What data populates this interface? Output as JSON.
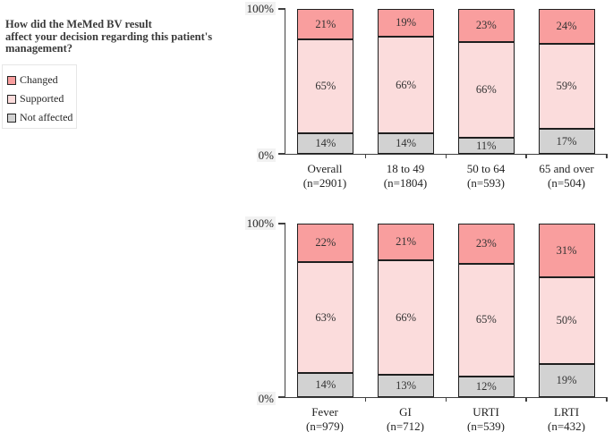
{
  "question": {
    "lines": [
      "How did the MeMed BV result",
      "affect your decision regarding this patient's",
      "management?"
    ]
  },
  "legend": {
    "items": [
      {
        "label": "Changed",
        "color": "#F99E9E"
      },
      {
        "label": "Supported",
        "color": "#FBDCDC"
      },
      {
        "label": "Not affected",
        "color": "#D2D2D2"
      }
    ]
  },
  "colors": {
    "segment_border": "#1f1f1f",
    "axis": "#404040",
    "label_text": "#333333"
  },
  "chart_data": [
    {
      "type": "bar",
      "stacked": true,
      "percent": true,
      "unit": "%",
      "title": "",
      "xlabel": "",
      "ylabel": "",
      "ylim": [
        0,
        100
      ],
      "grid": false,
      "legend_position": "left",
      "yticks": [
        {
          "value": 0,
          "label": "0%"
        },
        {
          "value": 100,
          "label": "100%"
        }
      ],
      "categories": [
        {
          "label": "Overall",
          "n": "(n=2901)"
        },
        {
          "label": "18 to 49",
          "n": "(n=1804)"
        },
        {
          "label": "50 to 64",
          "n": "(n=593)"
        },
        {
          "label": "65 and over",
          "n": "(n=504)"
        }
      ],
      "series": [
        {
          "name": "Not affected",
          "color": "#D2D2D2",
          "values": [
            14,
            14,
            11,
            17
          ]
        },
        {
          "name": "Supported",
          "color": "#FBDCDC",
          "values": [
            65,
            66,
            66,
            59
          ]
        },
        {
          "name": "Changed",
          "color": "#F99E9E",
          "values": [
            21,
            19,
            23,
            24
          ]
        }
      ]
    },
    {
      "type": "bar",
      "stacked": true,
      "percent": true,
      "unit": "%",
      "title": "",
      "xlabel": "",
      "ylabel": "",
      "ylim": [
        0,
        100
      ],
      "grid": false,
      "legend_position": "left",
      "yticks": [
        {
          "value": 0,
          "label": "0%"
        },
        {
          "value": 100,
          "label": "100%"
        }
      ],
      "categories": [
        {
          "label": "Fever",
          "n": "(n=979)"
        },
        {
          "label": "GI",
          "n": "(n=712)"
        },
        {
          "label": "URTI",
          "n": "(n=539)"
        },
        {
          "label": "LRTI",
          "n": "(n=432)"
        }
      ],
      "series": [
        {
          "name": "Not affected",
          "color": "#D2D2D2",
          "values": [
            14,
            13,
            12,
            19
          ]
        },
        {
          "name": "Supported",
          "color": "#FBDCDC",
          "values": [
            63,
            66,
            65,
            50
          ]
        },
        {
          "name": "Changed",
          "color": "#F99E9E",
          "values": [
            22,
            21,
            23,
            31
          ]
        }
      ]
    }
  ]
}
